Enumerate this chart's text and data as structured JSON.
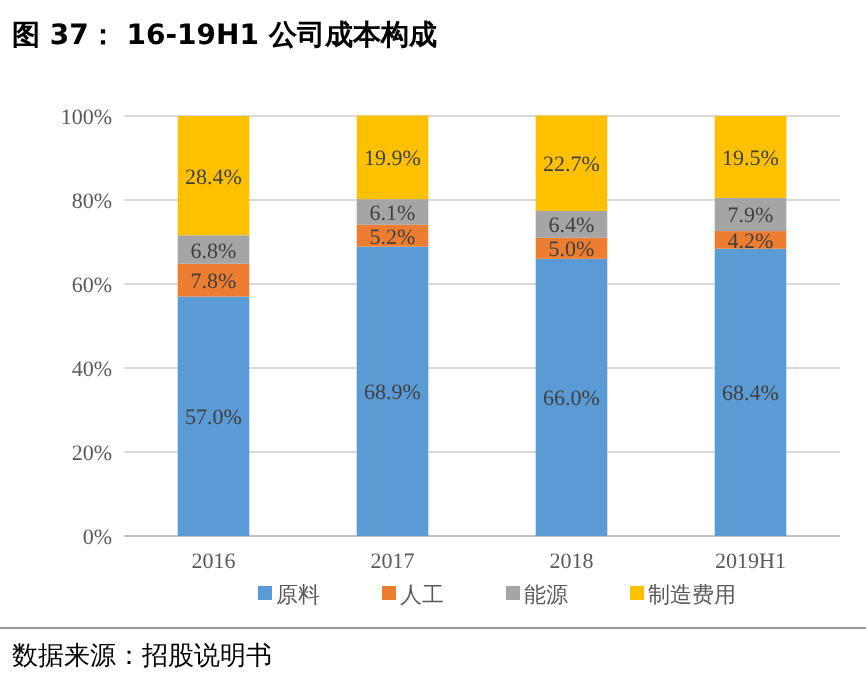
{
  "chart_data": {
    "type": "bar",
    "title": "图 37： 16-19H1 公司成本构成",
    "stacked": true,
    "categories": [
      "2016",
      "2017",
      "2018",
      "2019H1"
    ],
    "series": [
      {
        "name": "原料",
        "color": "#5b9bd5",
        "values": [
          57.0,
          68.9,
          66.0,
          68.4
        ],
        "value_labels": [
          "57.0%",
          "68.9%",
          "66.0%",
          "68.4%"
        ]
      },
      {
        "name": "人工",
        "color": "#ed7d31",
        "values": [
          7.8,
          5.2,
          5.0,
          4.2
        ],
        "value_labels": [
          "7.8%",
          "5.2%",
          "5.0%",
          "4.2%"
        ]
      },
      {
        "name": "能源",
        "color": "#a5a5a5",
        "values": [
          6.8,
          6.1,
          6.4,
          7.9
        ],
        "value_labels": [
          "6.8%",
          "6.1%",
          "6.4%",
          "7.9%"
        ]
      },
      {
        "name": "制造费用",
        "color": "#ffc000",
        "values": [
          28.4,
          19.9,
          22.7,
          19.5
        ],
        "value_labels": [
          "28.4%",
          "19.9%",
          "22.7%",
          "19.5%"
        ]
      }
    ],
    "ylim": [
      0,
      100
    ],
    "yticks": [
      {
        "value": 0,
        "label": "0%"
      },
      {
        "value": 20,
        "label": "20%"
      },
      {
        "value": 40,
        "label": "40%"
      },
      {
        "value": 60,
        "label": "60%"
      },
      {
        "value": 80,
        "label": "80%"
      },
      {
        "value": 100,
        "label": "100%"
      }
    ],
    "grid": "y",
    "legend": "bottom",
    "annotations": [
      "数据来源：招股说明书"
    ]
  }
}
